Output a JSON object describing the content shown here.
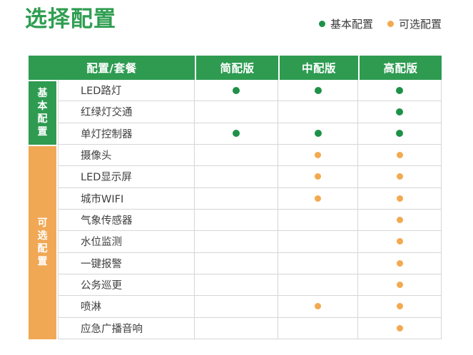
{
  "page": {
    "title": "选择配置"
  },
  "legend": [
    {
      "type": "basic",
      "label": "基本配置"
    },
    {
      "type": "optional",
      "label": "可选配置"
    }
  ],
  "table": {
    "header": {
      "first": "配置/套餐",
      "plans": [
        "简配版",
        "中配版",
        "高配版"
      ]
    },
    "sections": [
      {
        "type": "basic",
        "label": "基本配置",
        "rows": [
          {
            "name": "LED路灯",
            "marks": [
              true,
              true,
              true
            ]
          },
          {
            "name": "红绿灯交通",
            "marks": [
              false,
              false,
              true
            ]
          },
          {
            "name": "单灯控制器",
            "marks": [
              true,
              true,
              true
            ]
          }
        ]
      },
      {
        "type": "optional",
        "label": "可选配置",
        "rows": [
          {
            "name": "摄像头",
            "marks": [
              false,
              true,
              true
            ]
          },
          {
            "name": "LED显示屏",
            "marks": [
              false,
              true,
              true
            ]
          },
          {
            "name": "城市WIFI",
            "marks": [
              false,
              true,
              true
            ]
          },
          {
            "name": "气象传感器",
            "marks": [
              false,
              false,
              true
            ]
          },
          {
            "name": "水位监测",
            "marks": [
              false,
              false,
              true
            ]
          },
          {
            "name": "一键报警",
            "marks": [
              false,
              false,
              true
            ]
          },
          {
            "name": "公务巡更",
            "marks": [
              false,
              false,
              true
            ]
          },
          {
            "name": "喷淋",
            "marks": [
              false,
              true,
              true
            ]
          },
          {
            "name": "应急广播音响",
            "marks": [
              false,
              false,
              true
            ]
          }
        ]
      }
    ]
  },
  "colors": {
    "green": "#2e9b51",
    "orange": "#f0a855",
    "dot_green": "#1e9148",
    "dot_orange": "#f3a94f",
    "border": "#d6d6d6",
    "text": "#3f3f3f",
    "title_green": "#2f9e51",
    "legend_text": "#3a3a3a"
  },
  "chart_data": {
    "type": "table",
    "title": "选择配置",
    "columns": [
      "配置/套餐",
      "简配版",
      "中配版",
      "高配版"
    ],
    "legend": [
      {
        "label": "基本配置",
        "marker": "green-dot"
      },
      {
        "label": "可选配置",
        "marker": "orange-dot"
      }
    ],
    "row_groups": [
      {
        "group": "基本配置",
        "marker": "green-dot",
        "rows": [
          {
            "item": "LED路灯",
            "values": {
              "简配版": true,
              "中配版": true,
              "高配版": true
            }
          },
          {
            "item": "红绿灯交通",
            "values": {
              "简配版": false,
              "中配版": false,
              "高配版": true
            }
          },
          {
            "item": "单灯控制器",
            "values": {
              "简配版": true,
              "中配版": true,
              "高配版": true
            }
          }
        ]
      },
      {
        "group": "可选配置",
        "marker": "orange-dot",
        "rows": [
          {
            "item": "摄像头",
            "values": {
              "简配版": false,
              "中配版": true,
              "高配版": true
            }
          },
          {
            "item": "LED显示屏",
            "values": {
              "简配版": false,
              "中配版": true,
              "高配版": true
            }
          },
          {
            "item": "城市WIFI",
            "values": {
              "简配版": false,
              "中配版": true,
              "高配版": true
            }
          },
          {
            "item": "气象传感器",
            "values": {
              "简配版": false,
              "中配版": false,
              "高配版": true
            }
          },
          {
            "item": "水位监测",
            "values": {
              "简配版": false,
              "中配版": false,
              "高配版": true
            }
          },
          {
            "item": "一键报警",
            "values": {
              "简配版": false,
              "中配版": false,
              "高配版": true
            }
          },
          {
            "item": "公务巡更",
            "values": {
              "简配版": false,
              "中配版": false,
              "高配版": true
            }
          },
          {
            "item": "喷淋",
            "values": {
              "简配版": false,
              "中配版": true,
              "高配版": true
            }
          },
          {
            "item": "应急广播音响",
            "values": {
              "简配版": false,
              "中配版": false,
              "高配版": true
            }
          }
        ]
      }
    ]
  }
}
